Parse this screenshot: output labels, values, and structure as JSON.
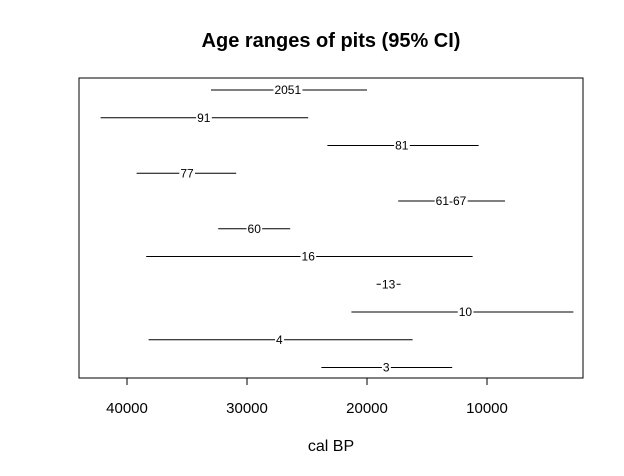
{
  "chart_data": {
    "type": "interval",
    "title": "Age ranges of pits (95% CI)",
    "xlabel": "cal BP",
    "ylabel": "",
    "x_reversed": true,
    "xlim": [
      44000,
      2000
    ],
    "xticks": [
      40000,
      30000,
      20000,
      10000
    ],
    "xtick_labels": [
      "40000",
      "30000",
      "20000",
      "10000"
    ],
    "grid": false,
    "intervals": [
      {
        "label": "2051",
        "from": 33000,
        "to": 20000,
        "mid": 26600
      },
      {
        "label": "91",
        "from": 42200,
        "to": 24900,
        "mid": 33600
      },
      {
        "label": "81",
        "from": 23300,
        "to": 10700,
        "mid": 17100
      },
      {
        "label": "77",
        "from": 39200,
        "to": 30900,
        "mid": 35000
      },
      {
        "label": "61-67",
        "from": 17400,
        "to": 8500,
        "mid": 13000
      },
      {
        "label": "60",
        "from": 32400,
        "to": 26400,
        "mid": 29400
      },
      {
        "label": "16",
        "from": 38400,
        "to": 11200,
        "mid": 24900
      },
      {
        "label": "13",
        "from": 19200,
        "to": 17200,
        "mid": 18200
      },
      {
        "label": "10",
        "from": 21300,
        "to": 2800,
        "mid": 11800
      },
      {
        "label": "4",
        "from": 38200,
        "to": 16200,
        "mid": 27300
      },
      {
        "label": "3",
        "from": 23800,
        "to": 12900,
        "mid": 18400
      }
    ]
  }
}
